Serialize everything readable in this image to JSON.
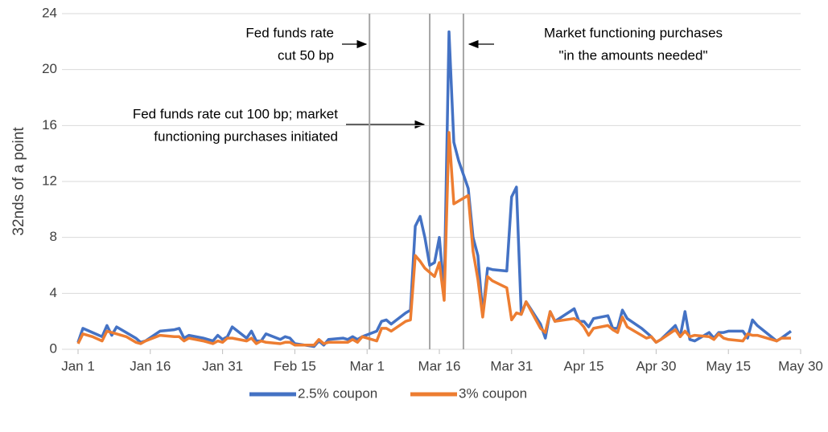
{
  "chart_data": {
    "type": "line",
    "y_label": "32nds of a point",
    "x": [
      0,
      1,
      3,
      5,
      6,
      7,
      8,
      10,
      12,
      13,
      14,
      17,
      20,
      21,
      22,
      23,
      26,
      28,
      29,
      30,
      31,
      32,
      35,
      36,
      37,
      38,
      39,
      42,
      43,
      44,
      45,
      49,
      50,
      51,
      52,
      55,
      56,
      57,
      58,
      59,
      62,
      63,
      64,
      65,
      68,
      69,
      70,
      71,
      72,
      73,
      74,
      75,
      76,
      77,
      78,
      79,
      81,
      82,
      83,
      84,
      85,
      86,
      89,
      90,
      91,
      92,
      93,
      96,
      97,
      98,
      99,
      103,
      104,
      105,
      106,
      107,
      110,
      111,
      112,
      113,
      114,
      117,
      118,
      119,
      120,
      121,
      124,
      125,
      126,
      127,
      128,
      131,
      132,
      133,
      134,
      135,
      138,
      139,
      140,
      141,
      145,
      146,
      148
    ],
    "series": [
      {
        "name": "2.5% coupon",
        "color": "#4472c4",
        "values": [
          0.5,
          1.5,
          1.2,
          0.9,
          1.7,
          1.0,
          1.6,
          1.2,
          0.8,
          0.5,
          0.6,
          1.3,
          1.4,
          1.5,
          0.8,
          1.0,
          0.8,
          0.6,
          1.0,
          0.7,
          0.9,
          1.6,
          0.8,
          1.3,
          0.6,
          0.6,
          1.1,
          0.7,
          0.9,
          0.8,
          0.4,
          0.2,
          0.6,
          0.3,
          0.7,
          0.8,
          0.7,
          0.9,
          0.7,
          0.9,
          1.3,
          2.0,
          2.1,
          1.8,
          2.6,
          2.8,
          8.8,
          9.5,
          8.0,
          6.0,
          6.2,
          8.0,
          4.0,
          22.7,
          14.8,
          13.5,
          11.5,
          8.0,
          6.7,
          2.5,
          5.8,
          5.7,
          5.6,
          10.9,
          11.6,
          2.5,
          3.4,
          1.8,
          0.8,
          2.7,
          2.0,
          2.9,
          2.0,
          2.0,
          1.6,
          2.2,
          2.4,
          1.5,
          1.5,
          2.8,
          2.2,
          1.5,
          1.2,
          0.9,
          0.5,
          0.7,
          1.7,
          0.9,
          2.7,
          0.7,
          0.6,
          1.2,
          0.8,
          1.2,
          1.2,
          1.3,
          1.3,
          0.8,
          2.1,
          1.7,
          0.6,
          0.8,
          1.3
        ]
      },
      {
        "name": "3% coupon",
        "color": "#ed7d31",
        "values": [
          0.4,
          1.1,
          0.9,
          0.6,
          1.3,
          1.2,
          1.1,
          0.9,
          0.5,
          0.4,
          0.6,
          1.0,
          0.9,
          0.9,
          0.6,
          0.8,
          0.6,
          0.4,
          0.6,
          0.5,
          0.8,
          0.8,
          0.6,
          0.8,
          0.4,
          0.6,
          0.5,
          0.4,
          0.5,
          0.5,
          0.3,
          0.3,
          0.7,
          0.4,
          0.5,
          0.5,
          0.5,
          0.7,
          0.5,
          0.9,
          0.6,
          1.5,
          1.5,
          1.3,
          2.0,
          2.1,
          6.7,
          6.3,
          5.8,
          5.5,
          5.2,
          6.2,
          3.5,
          15.5,
          10.4,
          10.6,
          11.0,
          7.0,
          5.0,
          2.3,
          5.2,
          4.9,
          4.4,
          2.1,
          2.6,
          2.5,
          3.4,
          1.5,
          1.2,
          2.7,
          2.0,
          2.2,
          2.0,
          1.6,
          1.0,
          1.5,
          1.7,
          1.4,
          1.2,
          2.3,
          1.6,
          1.0,
          0.8,
          0.9,
          0.5,
          0.7,
          1.4,
          0.9,
          1.3,
          0.9,
          1.0,
          0.9,
          0.7,
          1.1,
          0.8,
          0.7,
          0.6,
          1.1,
          1.0,
          1.0,
          0.6,
          0.8,
          0.8
        ]
      }
    ],
    "xlim": [
      0,
      150
    ],
    "xticks": [
      {
        "value": 0,
        "label": "Jan 1"
      },
      {
        "value": 15,
        "label": "Jan 16"
      },
      {
        "value": 30,
        "label": "Jan 31"
      },
      {
        "value": 45,
        "label": "Feb 15"
      },
      {
        "value": 60,
        "label": "Mar 1"
      },
      {
        "value": 75,
        "label": "Mar 16"
      },
      {
        "value": 90,
        "label": "Mar 31"
      },
      {
        "value": 105,
        "label": "Apr 15"
      },
      {
        "value": 120,
        "label": "Apr 30"
      },
      {
        "value": 135,
        "label": "May 15"
      },
      {
        "value": 150,
        "label": "May 30"
      }
    ],
    "ylim": [
      0,
      24
    ],
    "yticks": [
      0,
      4,
      8,
      12,
      16,
      20,
      24
    ],
    "grid": true,
    "legend": "bottom",
    "vlines": [
      60.5,
      73,
      80
    ],
    "annotations": [
      {
        "lines": [
          "Fed funds rate",
          "cut 50 bp"
        ]
      },
      {
        "lines": [
          "Fed funds rate cut 100 bp; market",
          "functioning purchases initiated"
        ]
      },
      {
        "lines": [
          "Market functioning purchases",
          "\"in the amounts needed\""
        ]
      }
    ]
  }
}
